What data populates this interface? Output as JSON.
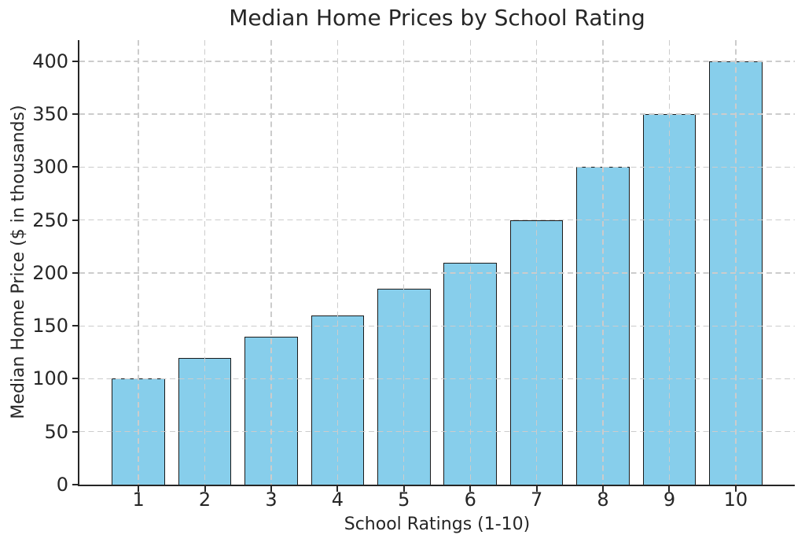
{
  "chart_data": {
    "type": "bar",
    "title": "Median Home Prices by School Rating",
    "xlabel": "School Ratings (1-10)",
    "ylabel": "Median Home Price ($ in thousands)",
    "categories": [
      "1",
      "2",
      "3",
      "4",
      "5",
      "6",
      "7",
      "8",
      "9",
      "10"
    ],
    "values": [
      100,
      120,
      140,
      160,
      185,
      210,
      250,
      300,
      350,
      400
    ],
    "yticks": [
      0,
      50,
      100,
      150,
      200,
      250,
      300,
      350,
      400
    ],
    "ylim": [
      0,
      420
    ],
    "xlim": [
      0.11,
      10.89
    ],
    "bar_width": 0.8,
    "grid": true,
    "grid_style": "dashed",
    "legend": false,
    "colors": {
      "bar_fill": "#87CEEB",
      "bar_edge": "#1a1a1a",
      "grid": "#cccccc",
      "spine": "#262626",
      "text": "#262626"
    }
  }
}
